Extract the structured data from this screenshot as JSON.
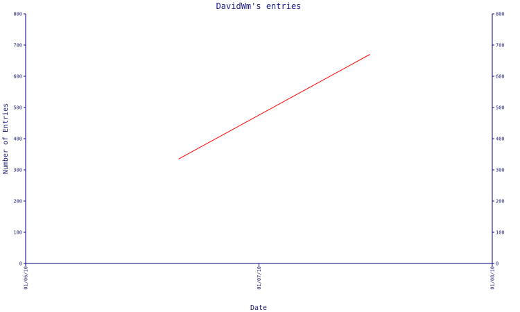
{
  "colors": {
    "axis": "#000080",
    "series": "#ff0000",
    "background": "#ffffff"
  },
  "chart_data": {
    "type": "line",
    "title": "DavidWm's entries",
    "xlabel": "Date",
    "ylabel": "Number of Entries",
    "x_ticks": [
      "01/06/10",
      "01/07/10",
      "01/08/10"
    ],
    "xlim": [
      "2010-06-01",
      "2010-08-01"
    ],
    "ylim": [
      0,
      800
    ],
    "y_ticks": [
      0,
      100,
      200,
      300,
      400,
      500,
      600,
      700,
      800
    ],
    "secondary_y_axis": true,
    "grid": false,
    "legend": "none",
    "series": [
      {
        "x": [
          "2010-06-21",
          "2010-07-16"
        ],
        "y": [
          335,
          670
        ]
      }
    ]
  }
}
